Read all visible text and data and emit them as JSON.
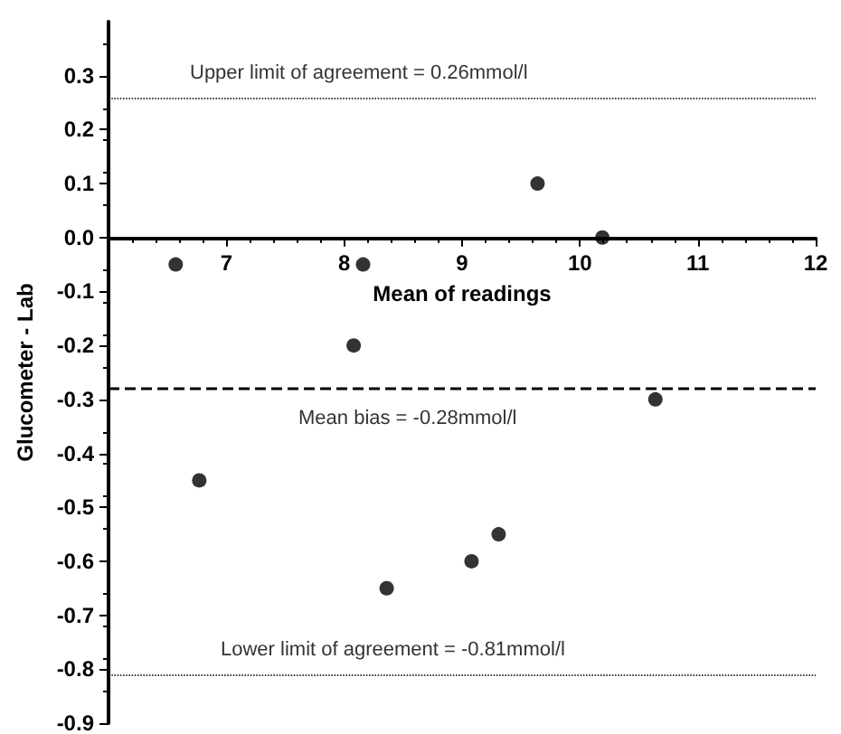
{
  "chart_data": {
    "type": "scatter",
    "xlabel": "Mean of readings",
    "ylabel": "Glucometer - Lab",
    "x": [
      6.57,
      6.77,
      8.08,
      8.16,
      8.36,
      9.08,
      9.31,
      9.64,
      10.19,
      10.64
    ],
    "values": [
      -0.05,
      -0.45,
      -0.2,
      -0.05,
      -0.65,
      -0.6,
      -0.55,
      0.1,
      0.0,
      -0.3
    ],
    "color": "#000000",
    "marker": "circle",
    "xlim": [
      6,
      12
    ],
    "xticks": [
      7,
      8,
      9,
      10,
      11,
      12
    ],
    "ylim": [
      -0.9,
      0.4
    ],
    "yticks": [
      -0.9,
      -0.8,
      -0.7,
      -0.6,
      -0.5,
      -0.4,
      -0.3,
      -0.2,
      -0.1,
      {
        "value": 0,
        "label": "0.0"
      },
      0.1,
      0.2,
      0.3
    ],
    "ref_lines": [
      {
        "axis": "y",
        "value": 0.26,
        "label": "Upper limit of agreement = 0.26mmol/l",
        "line_style": "dotted",
        "color": "#000000"
      },
      {
        "axis": "y",
        "value": -0.28,
        "label": "Mean bias = -0.28mmol/l",
        "line_style": "dashed",
        "color": "#000000"
      },
      {
        "axis": "y",
        "value": -0.81,
        "label": "Lower limit of agreement = -0.81mmol/l",
        "line_style": "dotted",
        "color": "#000000"
      }
    ],
    "grid": false
  }
}
